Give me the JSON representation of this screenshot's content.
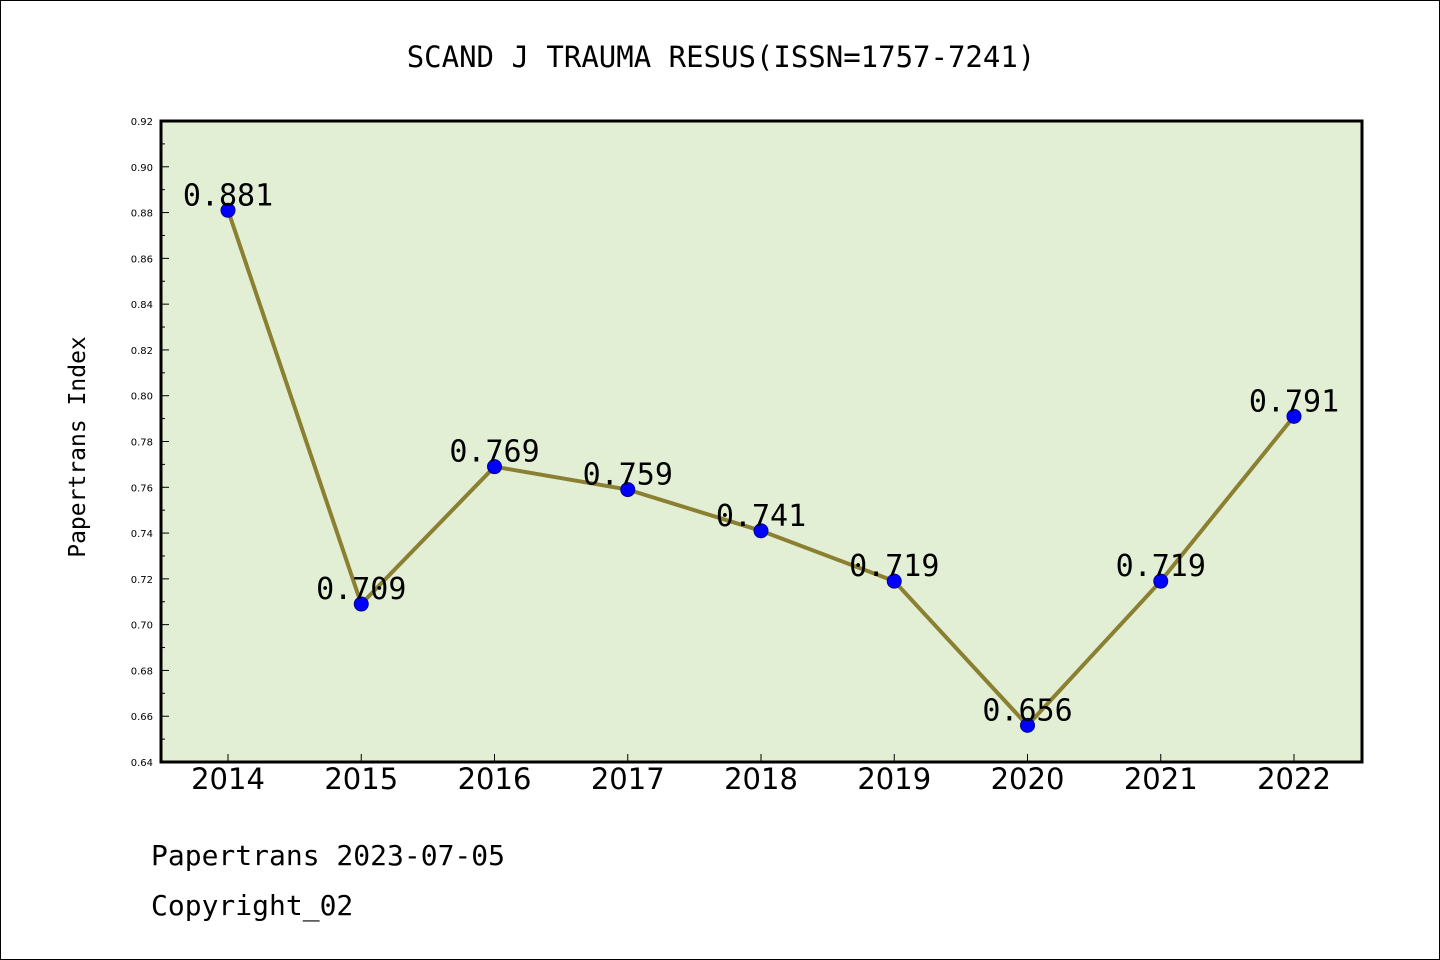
{
  "chart_data": {
    "type": "line",
    "title": "SCAND J TRAUMA RESUS(ISSN=1757-7241)",
    "xlabel": "",
    "ylabel": "Papertrans Index",
    "categories": [
      "2014",
      "2015",
      "2016",
      "2017",
      "2018",
      "2019",
      "2020",
      "2021",
      "2022"
    ],
    "values": [
      0.881,
      0.709,
      0.769,
      0.759,
      0.741,
      0.719,
      0.656,
      0.719,
      0.791
    ],
    "data_labels": [
      "0.881",
      "0.709",
      "0.769",
      "0.759",
      "0.741",
      "0.719",
      "0.656",
      "0.719",
      "0.791"
    ],
    "ylim": [
      0.64,
      0.92
    ],
    "yticks": [
      0.64,
      0.66,
      0.68,
      0.7,
      0.72,
      0.74,
      0.76,
      0.78,
      0.8,
      0.82,
      0.84,
      0.86,
      0.88,
      0.9,
      0.92
    ],
    "ytick_labels": [
      "0.64",
      "0.66",
      "0.68",
      "0.70",
      "0.72",
      "0.74",
      "0.76",
      "0.78",
      "0.80",
      "0.82",
      "0.84",
      "0.86",
      "0.88",
      "0.90",
      "0.92"
    ],
    "grid": false,
    "legend": "none",
    "colors": {
      "plot_background": "#e2efd5",
      "line": "#8b8032",
      "marker": "#0000ff",
      "marker_edge": "#00008b"
    }
  },
  "footer": {
    "date_line": "Papertrans 2023-07-05",
    "copyright_line": "Copyright_02"
  }
}
